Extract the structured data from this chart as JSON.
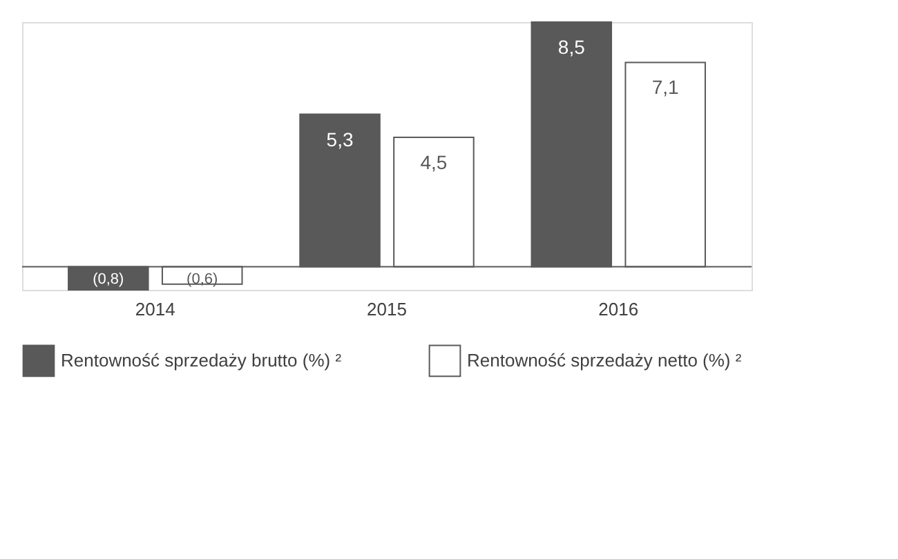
{
  "chart_data": {
    "type": "bar",
    "categories": [
      "2014",
      "2015",
      "2016"
    ],
    "series": [
      {
        "name": "Rentowność sprzedaży brutto (%) ²",
        "color": "#595959",
        "values": [
          -0.8,
          5.3,
          8.5
        ],
        "value_labels": [
          "(0,8)",
          "5,3",
          "8,5"
        ]
      },
      {
        "name": "Rentowność sprzedaży netto (%) ²",
        "color": "#ffffff",
        "values": [
          -0.6,
          4.5,
          7.1
        ],
        "value_labels": [
          "(0,6)",
          "4,5",
          "7,1"
        ]
      }
    ],
    "legend": "bottom"
  }
}
